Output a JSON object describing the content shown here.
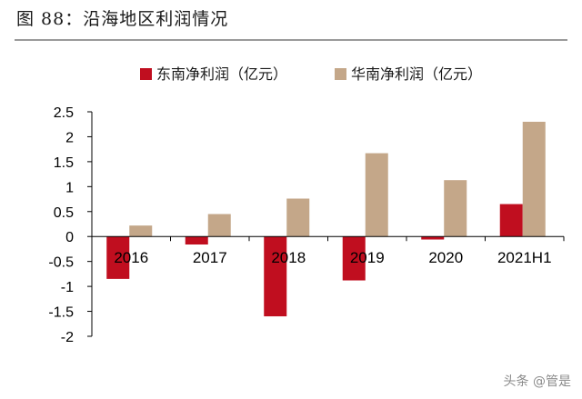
{
  "header": {
    "title": "图 88：沿海地区利润情况"
  },
  "watermark": "头条 @管是",
  "chart_data": {
    "type": "bar",
    "categories": [
      "2016",
      "2017",
      "2018",
      "2019",
      "2020",
      "2021H1"
    ],
    "series": [
      {
        "name": "东南净利润（亿元）",
        "color": "#c00e1f",
        "values": [
          -0.85,
          -0.16,
          -1.6,
          -0.88,
          -0.06,
          0.65
        ]
      },
      {
        "name": "华南净利润（亿元）",
        "color": "#c4a789",
        "values": [
          0.22,
          0.45,
          0.76,
          1.67,
          1.13,
          2.3
        ]
      }
    ],
    "ylim": [
      -2,
      2.5
    ],
    "yticks": [
      "2.5",
      "2",
      "1.5",
      "1",
      "0.5",
      "0",
      "-0.5",
      "-1",
      "-1.5",
      "-2"
    ],
    "legend_position": "top",
    "grid": false
  }
}
